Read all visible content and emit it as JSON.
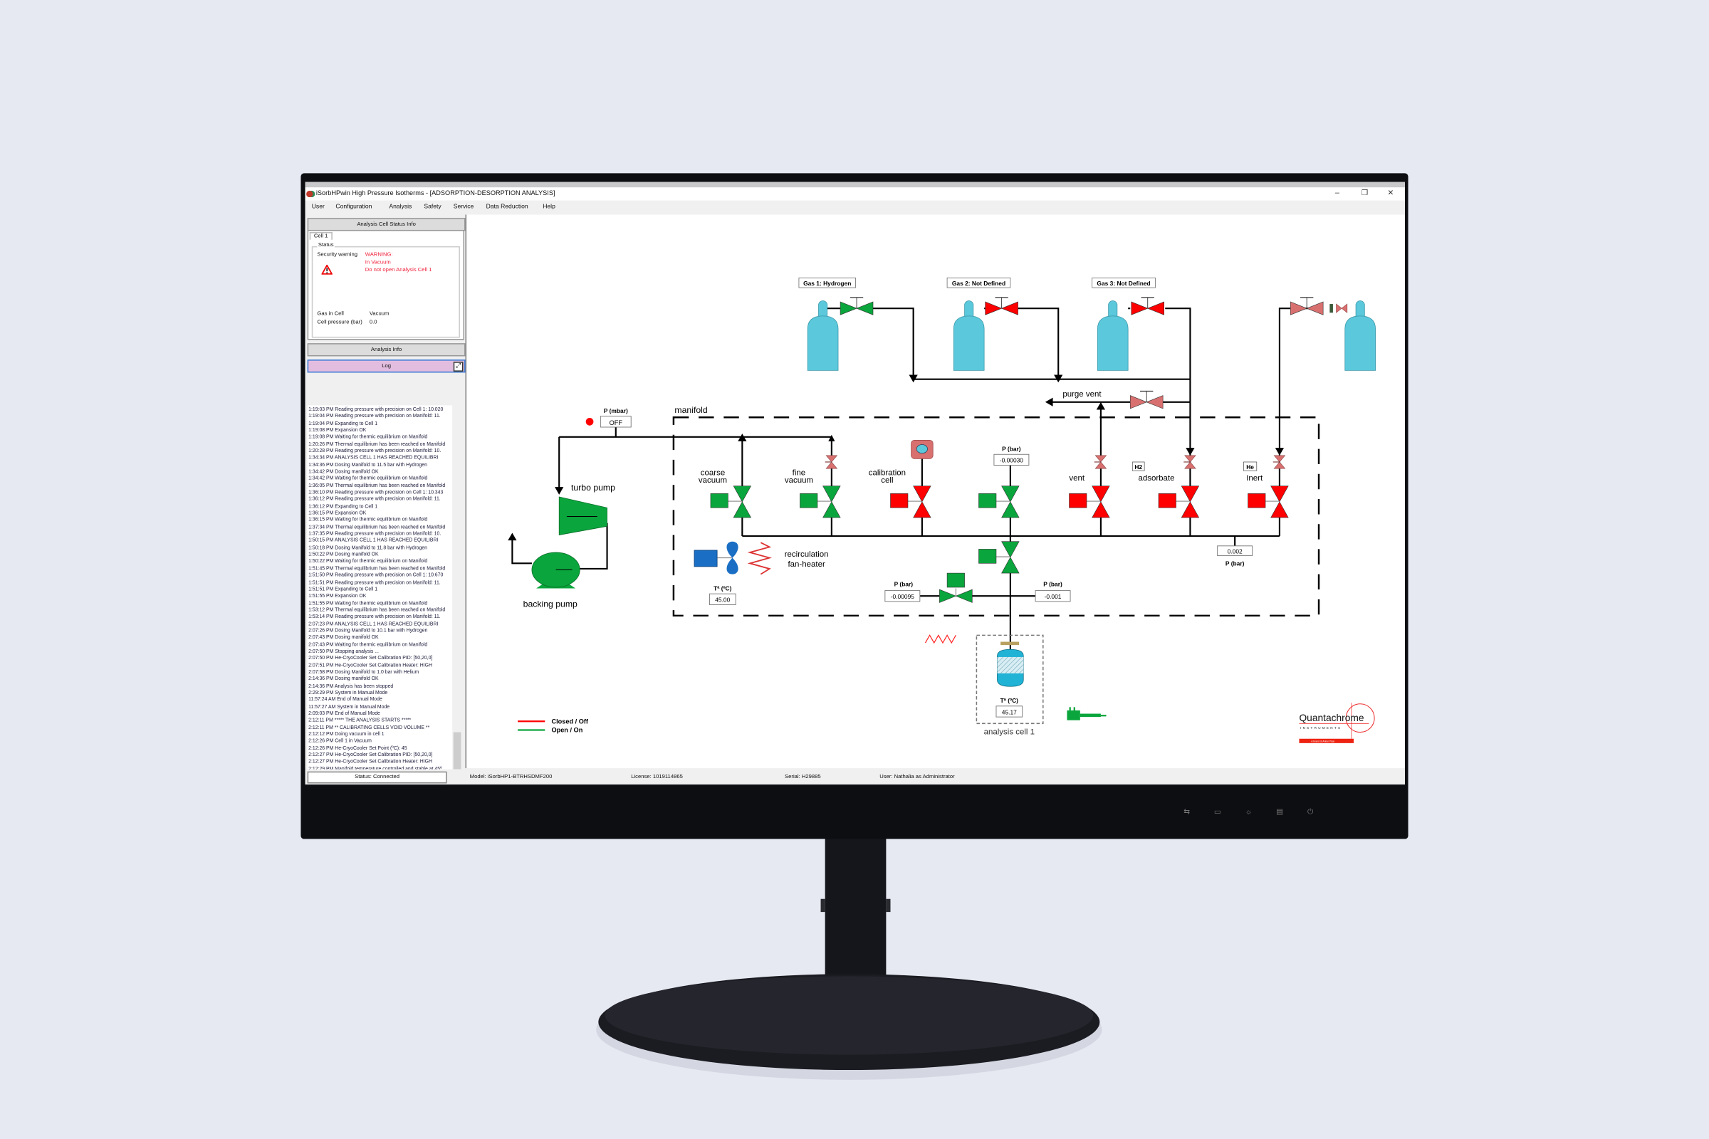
{
  "window": {
    "title": "iSorbHPwin High Pressure Isotherms - [ADSORPTION-DESORPTION ANALYSIS]",
    "controls": {
      "minimize": "–",
      "restore": "❐",
      "close": "✕"
    }
  },
  "menu": [
    "User",
    "Configuration",
    "Analysis",
    "Safety",
    "Service",
    "Data Reduction",
    "Help"
  ],
  "left_panel": {
    "status_header": "Analysis Cell Status Info",
    "tab": "Cell 1",
    "group_label": "Status",
    "security_label": "Security warning",
    "warning_lines": [
      "WARNING:",
      "In Vacuum",
      "Do not open Analysis Cell 1"
    ],
    "gas_label": "Gas in Cell",
    "gas_value": "Vacuum",
    "pressure_label": "Cell pressure (bar)",
    "pressure_value": "0.0",
    "analysis_info_header": "Analysis Info",
    "log_header": "Log"
  },
  "log": [
    "1:19:03 PM  Reading pressure with precision on Cell 1: 10.020",
    "1:19:04 PM  Reading pressure with precision on Manifold: 11.",
    "1:19:04 PM  Expanding to Cell 1",
    "1:19:08 PM  Expansion OK",
    "1:19:08 PM  Waiting for thermic equilibrium on Manifold",
    "1:20:26 PM  Thermal equilibrium has been reached on Manifold",
    "1:20:28 PM  Reading pressure with precision on Manifold: 10.",
    "1:34:34 PM  ANALYSIS CELL 1 HAS REACHED EQUILIBRI",
    "1:34:36 PM  Dosing Manifold to 11.5 bar with Hydrogen",
    "1:34:42 PM  Dosing manifold OK",
    "1:34:42 PM  Waiting for thermic equilibrium on Manifold",
    "1:36:05 PM  Thermal equilibrium has been reached on Manifold",
    "1:36:10 PM  Reading pressure with precision on Cell 1: 10.343",
    "1:36:12 PM  Reading pressure with precision on Manifold: 11.",
    "1:36:12 PM  Expanding to Cell 1",
    "1:36:15 PM  Expansion OK",
    "1:36:15 PM  Waiting for thermic equilibrium on Manifold",
    "1:37:34 PM  Thermal equilibrium has been reached on Manifold",
    "1:37:35 PM  Reading pressure with precision on Manifold: 10.",
    "1:50:15 PM  ANALYSIS CELL 1 HAS REACHED EQUILIBRI",
    "1:50:18 PM  Dosing Manifold to 11.8 bar with Hydrogen",
    "1:50:22 PM  Dosing manifold OK",
    "1:50:22 PM  Waiting for thermic equilibrium on Manifold",
    "1:51:45 PM  Thermal equilibrium has been reached on Manifold",
    "1:51:50 PM  Reading pressure with precision on Cell 1: 10.670",
    "1:51:51 PM  Reading pressure with precision on Manifold: 11.",
    "1:51:51 PM  Expanding to Cell 1",
    "1:51:55 PM  Expansion OK",
    "1:51:55 PM  Waiting for thermic equilibrium on Manifold",
    "1:53:12 PM  Thermal equilibrium has been reached on Manifold",
    "1:53:14 PM  Reading pressure with precision on Manifold: 11.",
    "2:07:23 PM  ANALYSIS CELL 1 HAS REACHED EQUILIBRI",
    "2:07:26 PM  Dosing Manifold to 10.1 bar with Hydrogen",
    "2:07:43 PM  Dosing manifold OK",
    "2:07:43 PM  Waiting for thermic equilibrium on Manifold",
    "2:07:50 PM  Stopping analysis ...",
    "2:07:50 PM  He-CryoCooler Set Calibration PID: [50,20,0]",
    "2:07:51 PM  He-CryoCooler Set Calibration Heater: HIGH",
    "2:07:58 PM  Dosing Manifold to 1.0 bar with Helium",
    "2:14:36 PM  Dosing manifold OK",
    "2:14:36 PM  Analysis has been stopped",
    "2:29:29 PM  System in Manual Mode",
    "11:57:24 AM  End of Manual Mode",
    "11:57:27 AM  System in Manual Mode",
    "2:09:03 PM  End of Manual Mode",
    "2:12:11 PM  ***** THE ANALYSIS STARTS *****",
    "2:12:11 PM  ** CALIBRATING CELLS VOID VOLUME **",
    "2:12:12 PM  Doing vacuum in cell 1",
    "2:12:26 PM  Cell 1 in Vacuum",
    "2:12:26 PM  He-CryoCooler Set Point (ºC): 45",
    "2:12:27 PM  He-CryoCooler Set Calibration PID: [50,20,0]",
    "2:12:27 PM  He-CryoCooler Set Calibration Heater: HIGH",
    "2:12:29 PM  Manifold temperature controlled and stable at 45º",
    "2:12:29 PM  Waiting to control Analysis Cell 1 temperature to"
  ],
  "status_bar": {
    "status": "Status: Connected",
    "model": "Model: iSorbHP1-BTRHSDMF200",
    "license": "License:  1019114865",
    "serial": "Serial: H29885",
    "user": "User: Nathalia as Administrator"
  },
  "diagram": {
    "gas1": "Gas 1: Hydrogen",
    "gas2": "Gas 2: Not Defined",
    "gas3": "Gas 3: Not Defined",
    "purge_vent": "purge vent",
    "manifold": "manifold",
    "p_mbar_label": "P (mbar)",
    "p_mbar_value": "OFF",
    "turbo_pump": "turbo pump",
    "backing_pump": "backing pump",
    "coarse_vacuum": [
      "coarse",
      "vacuum"
    ],
    "fine_vacuum": [
      "fine",
      "vacuum"
    ],
    "calibration_cell": [
      "calibration",
      "cell"
    ],
    "vent": "vent",
    "adsorbate": "adsorbate",
    "adsorbate_gas": "H2",
    "inert": "Inert",
    "inert_gas": "He",
    "p_bar_label": "P (bar)",
    "p_center": "-0.00030",
    "p_right": "0.002",
    "p_lower_left": "-0.00095",
    "p_lower_right": "-0.001",
    "recirculation": [
      "recirculation",
      "fan-heater"
    ],
    "temp_label": "Tª (ºC)",
    "temp_manifold": "45.00",
    "temp_cell": "45.17",
    "analysis_cell": "analysis cell 1",
    "valves": {
      "gas1": "open",
      "gas2": "closed",
      "gas3": "closed",
      "coarse": "open",
      "fine": "open",
      "calibration": "closed",
      "center": "open",
      "vent": "closed",
      "adsorbate": "closed",
      "inert": "closed",
      "cell": "open",
      "lower": "open"
    },
    "pump_status_color": "#ff0000",
    "colors": {
      "open": "#0aa53c",
      "closed": "#ff0000",
      "manual": "#d97070",
      "cylinder": "#5bc8dc",
      "fan": "#1a6fc4"
    }
  },
  "legend": {
    "closed": "Closed / Off",
    "open": "Open / On"
  },
  "logo": {
    "name": "Quantachrome",
    "sub": "INSTRUMENTS",
    "tag": "A brand of Anton Paar"
  }
}
